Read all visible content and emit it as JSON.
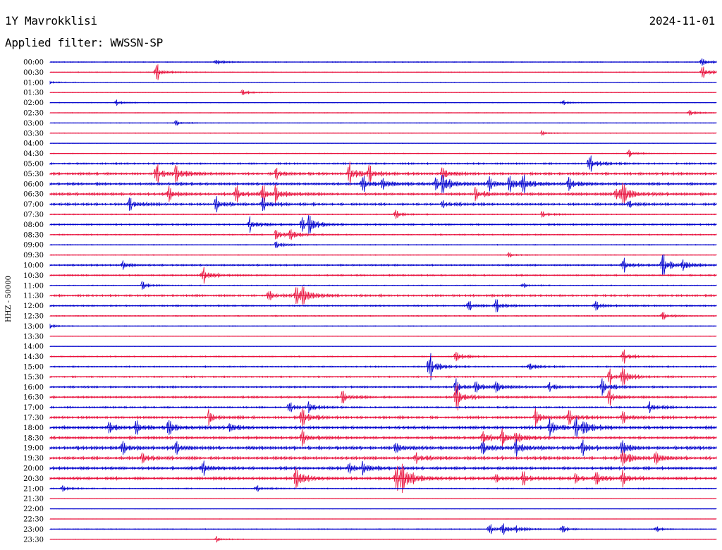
{
  "header": {
    "station": "1Y Mavrokklisi",
    "date": "2024-11-01",
    "filter": "Applied filter: WWSSN-SP"
  },
  "chart_data": {
    "type": "helicorder",
    "channel_label": "HHZ - 50000",
    "colors": [
      "#0000cc",
      "#e8103c"
    ],
    "grid": false,
    "time_labels": [
      "00:00",
      "00:30",
      "01:00",
      "01:30",
      "02:00",
      "02:30",
      "03:00",
      "03:30",
      "04:00",
      "04:30",
      "05:00",
      "05:30",
      "06:00",
      "06:30",
      "07:00",
      "07:30",
      "08:00",
      "08:30",
      "09:00",
      "09:30",
      "10:00",
      "10:30",
      "11:00",
      "11:30",
      "12:00",
      "12:30",
      "13:00",
      "13:30",
      "14:00",
      "14:30",
      "15:00",
      "15:30",
      "16:00",
      "16:30",
      "17:00",
      "17:30",
      "18:00",
      "18:30",
      "19:00",
      "19:30",
      "20:00",
      "20:30",
      "21:00",
      "21:30",
      "22:00",
      "22:30",
      "23:00",
      "23:30"
    ],
    "activity": [
      0.4,
      0.4,
      0.3,
      0.3,
      0.3,
      0.3,
      0.3,
      0.3,
      0.2,
      0.4,
      1.0,
      1.5,
      1.6,
      1.6,
      1.4,
      0.6,
      1.0,
      0.7,
      0.5,
      0.4,
      1.0,
      0.9,
      0.5,
      1.3,
      0.9,
      0.6,
      0.4,
      0.3,
      0.2,
      0.7,
      0.8,
      0.9,
      1.1,
      1.2,
      1.0,
      1.5,
      1.8,
      1.6,
      2.0,
      1.8,
      1.7,
      1.7,
      0.6,
      0.2,
      0.2,
      0.2,
      0.5,
      0.3
    ],
    "events": [
      [
        [
          0.25,
          0.8
        ],
        [
          0.98,
          1.2
        ]
      ],
      [
        [
          0.16,
          1.8
        ],
        [
          0.98,
          1.6
        ]
      ],
      [
        [
          0.0,
          0.5
        ]
      ],
      [
        [
          0.29,
          0.8
        ]
      ],
      [
        [
          0.1,
          0.7
        ],
        [
          0.77,
          0.5
        ]
      ],
      [
        [
          0.96,
          0.8
        ]
      ],
      [
        [
          0.19,
          0.8
        ]
      ],
      [
        [
          0.74,
          0.5
        ]
      ],
      [],
      [
        [
          0.87,
          0.9
        ]
      ],
      [
        [
          0.81,
          2.2
        ]
      ],
      [
        [
          0.16,
          2.3
        ],
        [
          0.19,
          2.4
        ],
        [
          0.34,
          1.4
        ],
        [
          0.45,
          3.2
        ],
        [
          0.48,
          1.6
        ],
        [
          0.59,
          1.8
        ]
      ],
      [
        [
          0.47,
          1.8
        ],
        [
          0.5,
          2.0
        ],
        [
          0.58,
          1.5
        ],
        [
          0.59,
          2.5
        ],
        [
          0.66,
          1.8
        ],
        [
          0.69,
          2.4
        ],
        [
          0.71,
          2.0
        ],
        [
          0.78,
          1.8
        ]
      ],
      [
        [
          0.18,
          1.8
        ],
        [
          0.28,
          1.8
        ],
        [
          0.32,
          2.2
        ],
        [
          0.34,
          2.0
        ],
        [
          0.64,
          1.6
        ],
        [
          0.85,
          2.0
        ],
        [
          0.86,
          2.6
        ]
      ],
      [
        [
          0.12,
          2.0
        ],
        [
          0.25,
          2.2
        ],
        [
          0.32,
          1.6
        ],
        [
          0.59,
          1.0
        ],
        [
          0.87,
          1.0
        ]
      ],
      [
        [
          0.52,
          1.0
        ],
        [
          0.74,
          0.8
        ]
      ],
      [
        [
          0.3,
          2.4
        ],
        [
          0.38,
          1.5
        ],
        [
          0.39,
          2.2
        ]
      ],
      [
        [
          0.34,
          1.8
        ],
        [
          0.36,
          1.6
        ]
      ],
      [
        [
          0.34,
          1.0
        ]
      ],
      [
        [
          0.69,
          0.6
        ]
      ],
      [
        [
          0.11,
          1.0
        ],
        [
          0.86,
          1.8
        ],
        [
          0.92,
          3.0
        ],
        [
          0.95,
          1.5
        ]
      ],
      [
        [
          0.23,
          2.0
        ]
      ],
      [
        [
          0.14,
          1.0
        ],
        [
          0.71,
          0.6
        ]
      ],
      [
        [
          0.33,
          1.2
        ],
        [
          0.37,
          2.6
        ],
        [
          0.38,
          2.0
        ]
      ],
      [
        [
          0.63,
          1.2
        ],
        [
          0.67,
          1.3
        ],
        [
          0.82,
          1.2
        ]
      ],
      [
        [
          0.92,
          1.0
        ]
      ],
      [
        [
          0.0,
          0.6
        ]
      ],
      [],
      [],
      [
        [
          0.61,
          1.4
        ],
        [
          0.86,
          1.5
        ]
      ],
      [
        [
          0.57,
          3.0
        ],
        [
          0.72,
          1.2
        ]
      ],
      [
        [
          0.84,
          2.0
        ],
        [
          0.86,
          2.4
        ]
      ],
      [
        [
          0.61,
          2.2
        ],
        [
          0.64,
          1.6
        ],
        [
          0.67,
          1.8
        ],
        [
          0.75,
          1.4
        ],
        [
          0.83,
          2.0
        ]
      ],
      [
        [
          0.44,
          1.6
        ],
        [
          0.61,
          3.2
        ],
        [
          0.84,
          1.8
        ]
      ],
      [
        [
          0.36,
          1.4
        ],
        [
          0.39,
          1.2
        ],
        [
          0.9,
          1.8
        ]
      ],
      [
        [
          0.24,
          1.6
        ],
        [
          0.38,
          2.0
        ],
        [
          0.73,
          2.2
        ],
        [
          0.78,
          2.0
        ],
        [
          0.86,
          1.5
        ]
      ],
      [
        [
          0.09,
          2.0
        ],
        [
          0.13,
          1.8
        ],
        [
          0.18,
          2.0
        ],
        [
          0.27,
          1.6
        ],
        [
          0.75,
          2.4
        ],
        [
          0.79,
          2.6
        ],
        [
          0.8,
          2.2
        ]
      ],
      [
        [
          0.38,
          1.6
        ],
        [
          0.65,
          1.8
        ],
        [
          0.68,
          2.0
        ],
        [
          0.7,
          1.8
        ]
      ],
      [
        [
          0.11,
          1.6
        ],
        [
          0.19,
          1.5
        ],
        [
          0.52,
          1.6
        ],
        [
          0.65,
          2.4
        ],
        [
          0.7,
          2.6
        ],
        [
          0.8,
          1.8
        ],
        [
          0.86,
          2.0
        ]
      ],
      [
        [
          0.14,
          1.8
        ],
        [
          0.55,
          2.0
        ],
        [
          0.86,
          2.6
        ],
        [
          0.91,
          1.8
        ]
      ],
      [
        [
          0.23,
          1.6
        ],
        [
          0.45,
          1.5
        ],
        [
          0.47,
          1.4
        ]
      ],
      [
        [
          0.37,
          3.6
        ],
        [
          0.52,
          3.2
        ],
        [
          0.53,
          3.6
        ],
        [
          0.67,
          1.4
        ],
        [
          0.71,
          1.6
        ],
        [
          0.79,
          1.2
        ],
        [
          0.82,
          1.6
        ],
        [
          0.86,
          1.8
        ]
      ],
      [
        [
          0.02,
          0.8
        ],
        [
          0.31,
          0.8
        ]
      ],
      [],
      [],
      [],
      [
        [
          0.66,
          1.4
        ],
        [
          0.68,
          1.2
        ],
        [
          0.7,
          1.0
        ],
        [
          0.77,
          0.8
        ],
        [
          0.91,
          0.6
        ]
      ],
      [
        [
          0.25,
          0.8
        ]
      ]
    ]
  }
}
